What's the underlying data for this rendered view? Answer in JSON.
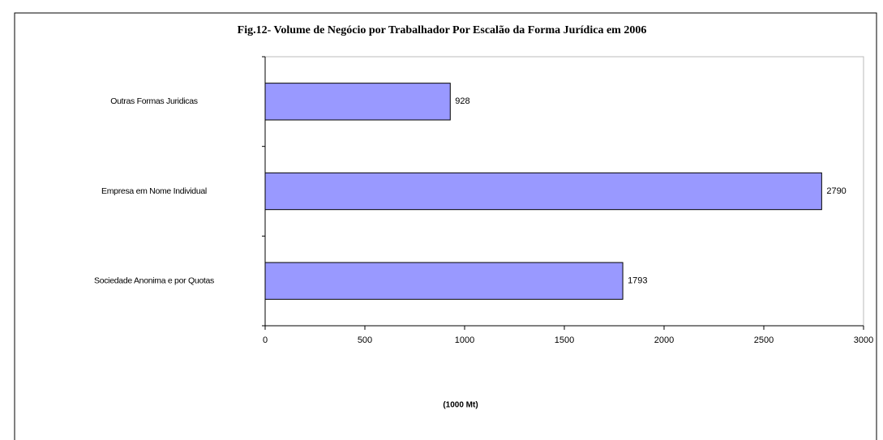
{
  "chart_data": {
    "type": "bar",
    "orientation": "horizontal",
    "title": "Fig.12- Volume de Negócio por Trabalhador Por Escalão da Forma Jurídica em 2006",
    "x_label": "(1000 Mt)",
    "categories": [
      "Outras Formas Juridicas",
      "Empresa em Nome Individual",
      "Sociedade Anonima e por Quotas"
    ],
    "values": [
      928,
      2790,
      1793
    ],
    "color": "#9999ff",
    "xlim": [
      0,
      3000
    ],
    "xticks": [
      0,
      500,
      1000,
      1500,
      2000,
      2500,
      3000
    ],
    "grid": false
  }
}
